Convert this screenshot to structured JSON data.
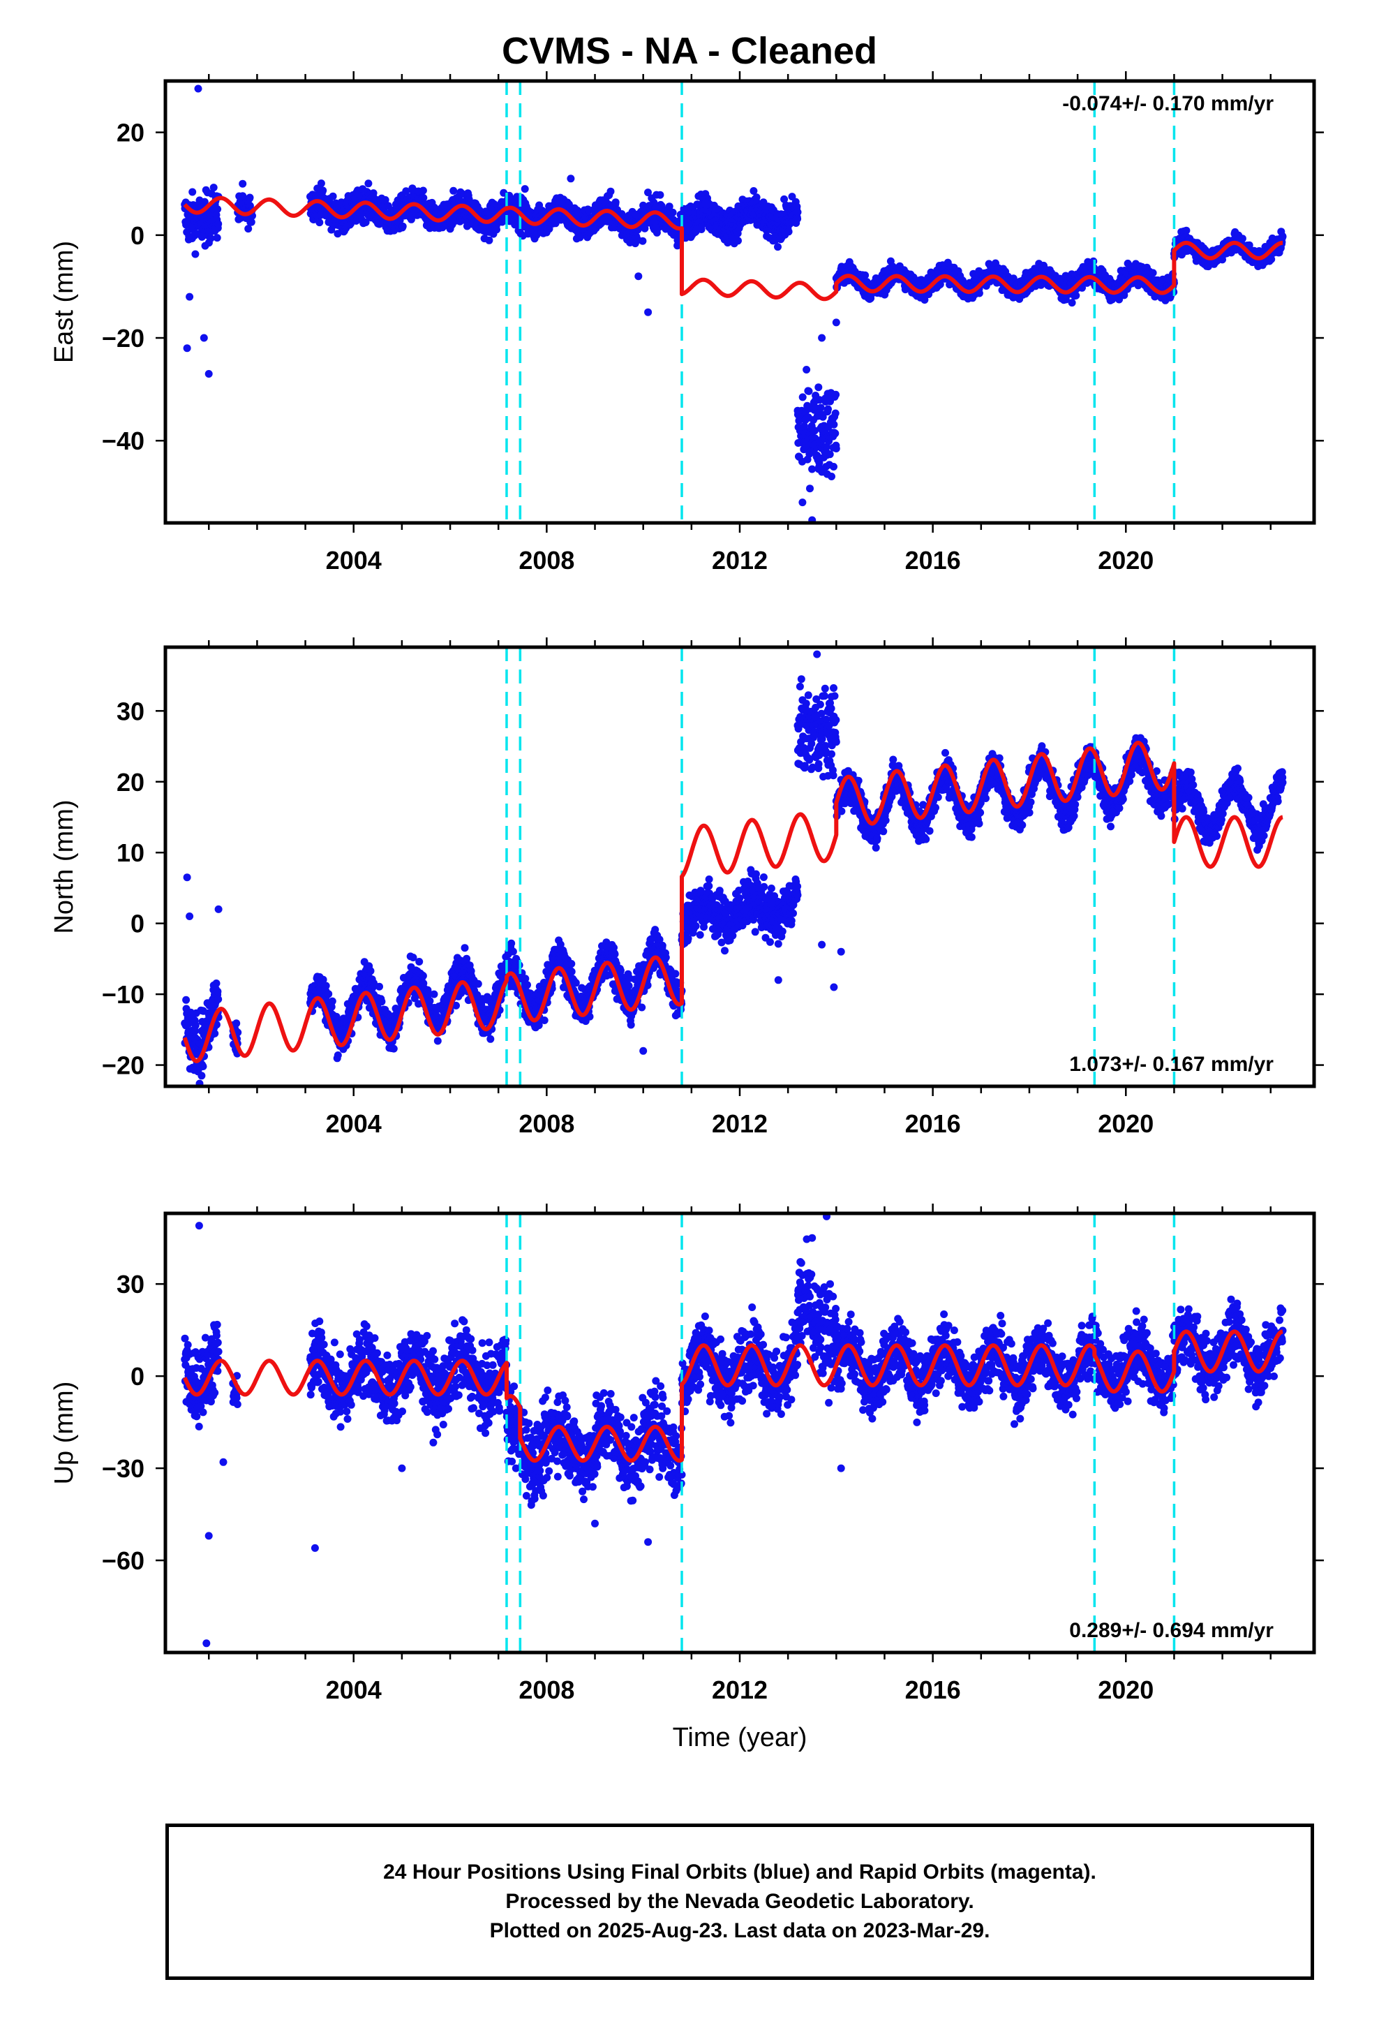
{
  "title": "CVMS  - NA - Cleaned",
  "footer": {
    "line1": "24 Hour Positions Using Final Orbits (blue) and Rapid Orbits (magenta).",
    "line2": "Processed by the Nevada Geodetic Laboratory.",
    "line3": "Plotted on 2025-Aug-23. Last data on 2023-Mar-29."
  },
  "colors": {
    "data_points": "#1010ee",
    "model_fit": "#ee1111",
    "event_lines": "#00e5ee"
  },
  "chart_data": [
    {
      "type": "scatter",
      "ylabel": "East (mm)",
      "xlabel": "",
      "xlim": [
        2000.1,
        2023.9
      ],
      "ylim": [
        -56,
        30
      ],
      "xticks": [
        2004,
        2008,
        2012,
        2016,
        2020
      ],
      "yticks": [
        20,
        0,
        -20,
        -40
      ],
      "ytick_labels": [
        "20",
        "0",
        "−20",
        "−40"
      ],
      "rate_label": "-0.074+/- 0.170 mm/yr",
      "rate_label_position": "top-right",
      "event_lines": [
        2007.17,
        2007.45,
        2010.8,
        2019.35,
        2021.0
      ],
      "series": [
        {
          "kind": "points",
          "segments": [
            {
              "start": 2000.5,
              "end": 2001.2,
              "offset": 3.5,
              "trend": 0,
              "amplitude": 0.8,
              "noise": 3.5
            },
            {
              "start": 2001.6,
              "end": 2001.9,
              "offset": 5.5,
              "trend": 0,
              "amplitude": 0.8,
              "noise": 2.0
            },
            {
              "start": 2003.1,
              "end": 2010.8,
              "offset": 4.8,
              "trend": -0.3,
              "amplitude": 1.5,
              "noise": 2.2
            },
            {
              "start": 2010.8,
              "end": 2013.2,
              "offset": 3.2,
              "trend": 0,
              "amplitude": 1.5,
              "noise": 2.3
            },
            {
              "start": 2013.2,
              "end": 2014.0,
              "offset": -38.0,
              "trend": 0,
              "amplitude": 0,
              "noise": 6.0
            },
            {
              "start": 2014.0,
              "end": 2021.0,
              "offset": -9.0,
              "trend": 0,
              "amplitude": 1.5,
              "noise": 1.5
            },
            {
              "start": 2021.0,
              "end": 2023.25,
              "offset": -3.0,
              "trend": 0,
              "amplitude": 1.5,
              "noise": 1.3
            }
          ],
          "outliers": [
            [
              2000.78,
              28.5
            ],
            [
              2000.55,
              -22
            ],
            [
              2001.0,
              -27
            ],
            [
              2000.9,
              -20
            ],
            [
              2000.6,
              -12
            ],
            [
              2010.1,
              -15
            ],
            [
              2009.9,
              -8
            ],
            [
              2013.5,
              -56
            ],
            [
              2013.3,
              -52
            ],
            [
              2013.7,
              -20
            ],
            [
              2014.0,
              -17
            ],
            [
              2007.55,
              9
            ],
            [
              2008.5,
              11
            ],
            [
              2001.7,
              10
            ]
          ]
        },
        {
          "kind": "model",
          "segments": [
            {
              "start": 2000.5,
              "end": 2007.17,
              "offset": 4.9,
              "trend": -0.3,
              "amplitude": 1.5
            },
            {
              "start": 2007.17,
              "end": 2010.8,
              "offset": 4.8,
              "trend": -0.3,
              "amplitude": 1.5
            },
            {
              "start": 2010.8,
              "end": 2014.0,
              "offset": -8.0,
              "trend": -0.3,
              "amplitude": 1.5
            },
            {
              "start": 2014.0,
              "end": 2021.0,
              "offset": -8.9,
              "trend": -0.05,
              "amplitude": 1.5
            },
            {
              "start": 2021.0,
              "end": 2023.25,
              "offset": -3.0,
              "trend": 0,
              "amplitude": 1.5
            }
          ]
        }
      ]
    },
    {
      "type": "scatter",
      "ylabel": "North (mm)",
      "xlabel": "",
      "xlim": [
        2000.1,
        2023.9
      ],
      "ylim": [
        -23,
        39
      ],
      "xticks": [
        2004,
        2008,
        2012,
        2016,
        2020
      ],
      "yticks": [
        30,
        20,
        10,
        0,
        -10,
        -20
      ],
      "ytick_labels": [
        "30",
        "20",
        "10",
        "0",
        "−10",
        "−20"
      ],
      "rate_label": "1.073+/- 0.167 mm/yr",
      "rate_label_position": "bottom-right",
      "event_lines": [
        2007.17,
        2007.45,
        2010.8,
        2019.35,
        2021.0
      ],
      "series": [
        {
          "kind": "points",
          "segments": [
            {
              "start": 2000.5,
              "end": 2001.2,
              "offset": -14.0,
              "trend": 0,
              "amplitude": 3.5,
              "noise": 3.0
            },
            {
              "start": 2001.5,
              "end": 2001.6,
              "offset": -15.0,
              "trend": 0,
              "amplitude": 3.5,
              "noise": 2.0
            },
            {
              "start": 2003.1,
              "end": 2010.8,
              "offset": -12.0,
              "trend": 0.75,
              "amplitude": 3.5,
              "noise": 2.0
            },
            {
              "start": 2010.8,
              "end": 2013.2,
              "offset": -3.0,
              "trend": 0.6,
              "amplitude": 1.5,
              "noise": 2.5
            },
            {
              "start": 2013.2,
              "end": 2014.0,
              "offset": 27.0,
              "trend": 0,
              "amplitude": 0,
              "noise": 4.0
            },
            {
              "start": 2014.0,
              "end": 2021.0,
              "offset": 9.0,
              "trend": 0.7,
              "amplitude": 3.5,
              "noise": 1.8
            },
            {
              "start": 2021.0,
              "end": 2023.25,
              "offset": 11.0,
              "trend": 0.3,
              "amplitude": 3.5,
              "noise": 1.6
            }
          ],
          "outliers": [
            [
              2000.55,
              6.5
            ],
            [
              2000.6,
              1
            ],
            [
              2000.85,
              -21.5
            ],
            [
              2001.2,
              2
            ],
            [
              2010.0,
              -18
            ],
            [
              2012.8,
              -8
            ],
            [
              2013.6,
              38
            ],
            [
              2013.9,
              32
            ],
            [
              2013.95,
              -9
            ],
            [
              2014.1,
              -4
            ],
            [
              2013.7,
              -3
            ],
            [
              2018.0,
              22
            ]
          ]
        },
        {
          "kind": "model",
          "segments": [
            {
              "start": 2000.5,
              "end": 2007.17,
              "offset": -13.5,
              "trend": 0.75,
              "amplitude": 3.5
            },
            {
              "start": 2007.17,
              "end": 2010.8,
              "offset": -13.0,
              "trend": 0.75,
              "amplitude": 3.5
            },
            {
              "start": 2010.8,
              "end": 2014.0,
              "offset": 4.5,
              "trend": 0.8,
              "amplitude": 3.5
            },
            {
              "start": 2014.0,
              "end": 2021.0,
              "offset": 9.0,
              "trend": 0.8,
              "amplitude": 3.5
            },
            {
              "start": 2021.0,
              "end": 2023.25,
              "offset": 11.5,
              "trend": 0.0,
              "amplitude": 3.5
            }
          ]
        }
      ]
    },
    {
      "type": "scatter",
      "ylabel": "Up (mm)",
      "xlabel": "Time (year)",
      "xlim": [
        2000.1,
        2023.9
      ],
      "ylim": [
        -90,
        53
      ],
      "xticks": [
        2004,
        2008,
        2012,
        2016,
        2020
      ],
      "yticks": [
        30,
        0,
        -30,
        -60
      ],
      "ytick_labels": [
        "30",
        "0",
        "−30",
        "−60"
      ],
      "rate_label": "0.289+/- 0.694 mm/yr",
      "rate_label_position": "bottom-right",
      "event_lines": [
        2007.17,
        2007.45,
        2010.8,
        2019.35,
        2021.0
      ],
      "series": [
        {
          "kind": "points",
          "segments": [
            {
              "start": 2000.5,
              "end": 2001.2,
              "offset": 2.0,
              "trend": 0,
              "amplitude": 5.0,
              "noise": 9.0
            },
            {
              "start": 2001.5,
              "end": 2001.6,
              "offset": -5.0,
              "trend": 0,
              "amplitude": 5.0,
              "noise": 5.0
            },
            {
              "start": 2003.1,
              "end": 2007.17,
              "offset": 0.0,
              "trend": 0,
              "amplitude": 6.0,
              "noise": 8.0
            },
            {
              "start": 2007.17,
              "end": 2010.8,
              "offset": -22.0,
              "trend": 0,
              "amplitude": 6.0,
              "noise": 9.0
            },
            {
              "start": 2010.8,
              "end": 2013.2,
              "offset": 3.0,
              "trend": 0,
              "amplitude": 6.0,
              "noise": 8.0
            },
            {
              "start": 2013.2,
              "end": 2014.0,
              "offset": 18.0,
              "trend": 0,
              "amplitude": 6.0,
              "noise": 12.0
            },
            {
              "start": 2014.0,
              "end": 2021.0,
              "offset": 3.0,
              "trend": 0,
              "amplitude": 6.0,
              "noise": 7.0
            },
            {
              "start": 2021.0,
              "end": 2023.25,
              "offset": 8.0,
              "trend": 0,
              "amplitude": 6.0,
              "noise": 7.0
            }
          ],
          "outliers": [
            [
              2000.8,
              49
            ],
            [
              2001.0,
              -52
            ],
            [
              2000.95,
              -87
            ],
            [
              2003.2,
              -56
            ],
            [
              2001.3,
              -28
            ],
            [
              2013.8,
              52
            ],
            [
              2013.5,
              45
            ],
            [
              2009.0,
              -48
            ],
            [
              2010.1,
              -54
            ],
            [
              2014.1,
              -30
            ],
            [
              2005.0,
              -30
            ]
          ]
        },
        {
          "kind": "model",
          "segments": [
            {
              "start": 2000.5,
              "end": 2007.17,
              "offset": -0.5,
              "trend": 0,
              "amplitude": 5.5
            },
            {
              "start": 2007.17,
              "end": 2007.45,
              "offset": -12.0,
              "trend": 0,
              "amplitude": 5.5
            },
            {
              "start": 2007.45,
              "end": 2010.8,
              "offset": -22.0,
              "trend": 0,
              "amplitude": 5.5
            },
            {
              "start": 2010.8,
              "end": 2019.35,
              "offset": 3.5,
              "trend": 0,
              "amplitude": 6.5
            },
            {
              "start": 2019.35,
              "end": 2021.0,
              "offset": 1.5,
              "trend": 0,
              "amplitude": 6.5
            },
            {
              "start": 2021.0,
              "end": 2023.25,
              "offset": 8.0,
              "trend": 0,
              "amplitude": 6.5
            }
          ]
        }
      ]
    }
  ]
}
